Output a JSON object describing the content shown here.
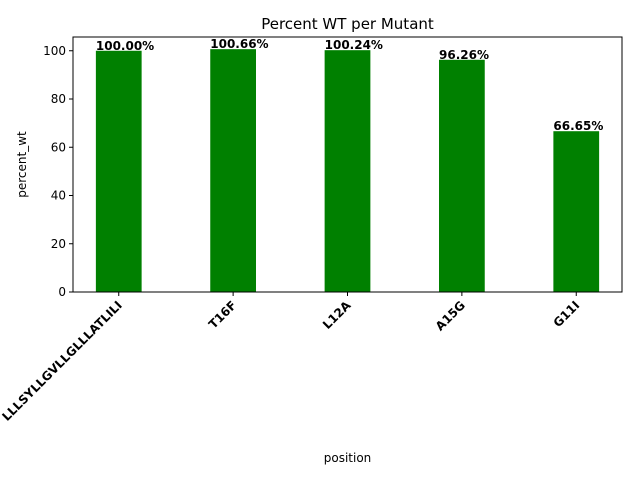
{
  "chart_data": {
    "type": "bar",
    "title": "Percent WT per Mutant",
    "xlabel": "position",
    "ylabel": "percent_wt",
    "categories": [
      "LLLSYLLGVLLGLLLATLILI",
      "T16F",
      "L12A",
      "A15G",
      "G11I"
    ],
    "values": [
      100.0,
      100.66,
      100.24,
      96.26,
      66.65
    ],
    "data_labels": [
      "100.00%",
      "100.66%",
      "100.24%",
      "96.26%",
      "66.65%"
    ],
    "ylim": [
      0,
      105.7
    ],
    "yticks": [
      0,
      20,
      40,
      60,
      80,
      100
    ],
    "bar_color": "#008000",
    "grid": false,
    "legend": "none"
  }
}
